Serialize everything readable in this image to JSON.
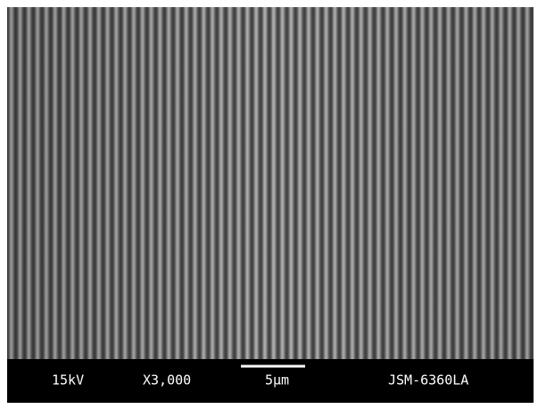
{
  "info_bar": {
    "voltage": "15kV",
    "magnification": "X3,000",
    "scale_bar": "5μm",
    "instrument": "JSM-6360LA"
  }
}
